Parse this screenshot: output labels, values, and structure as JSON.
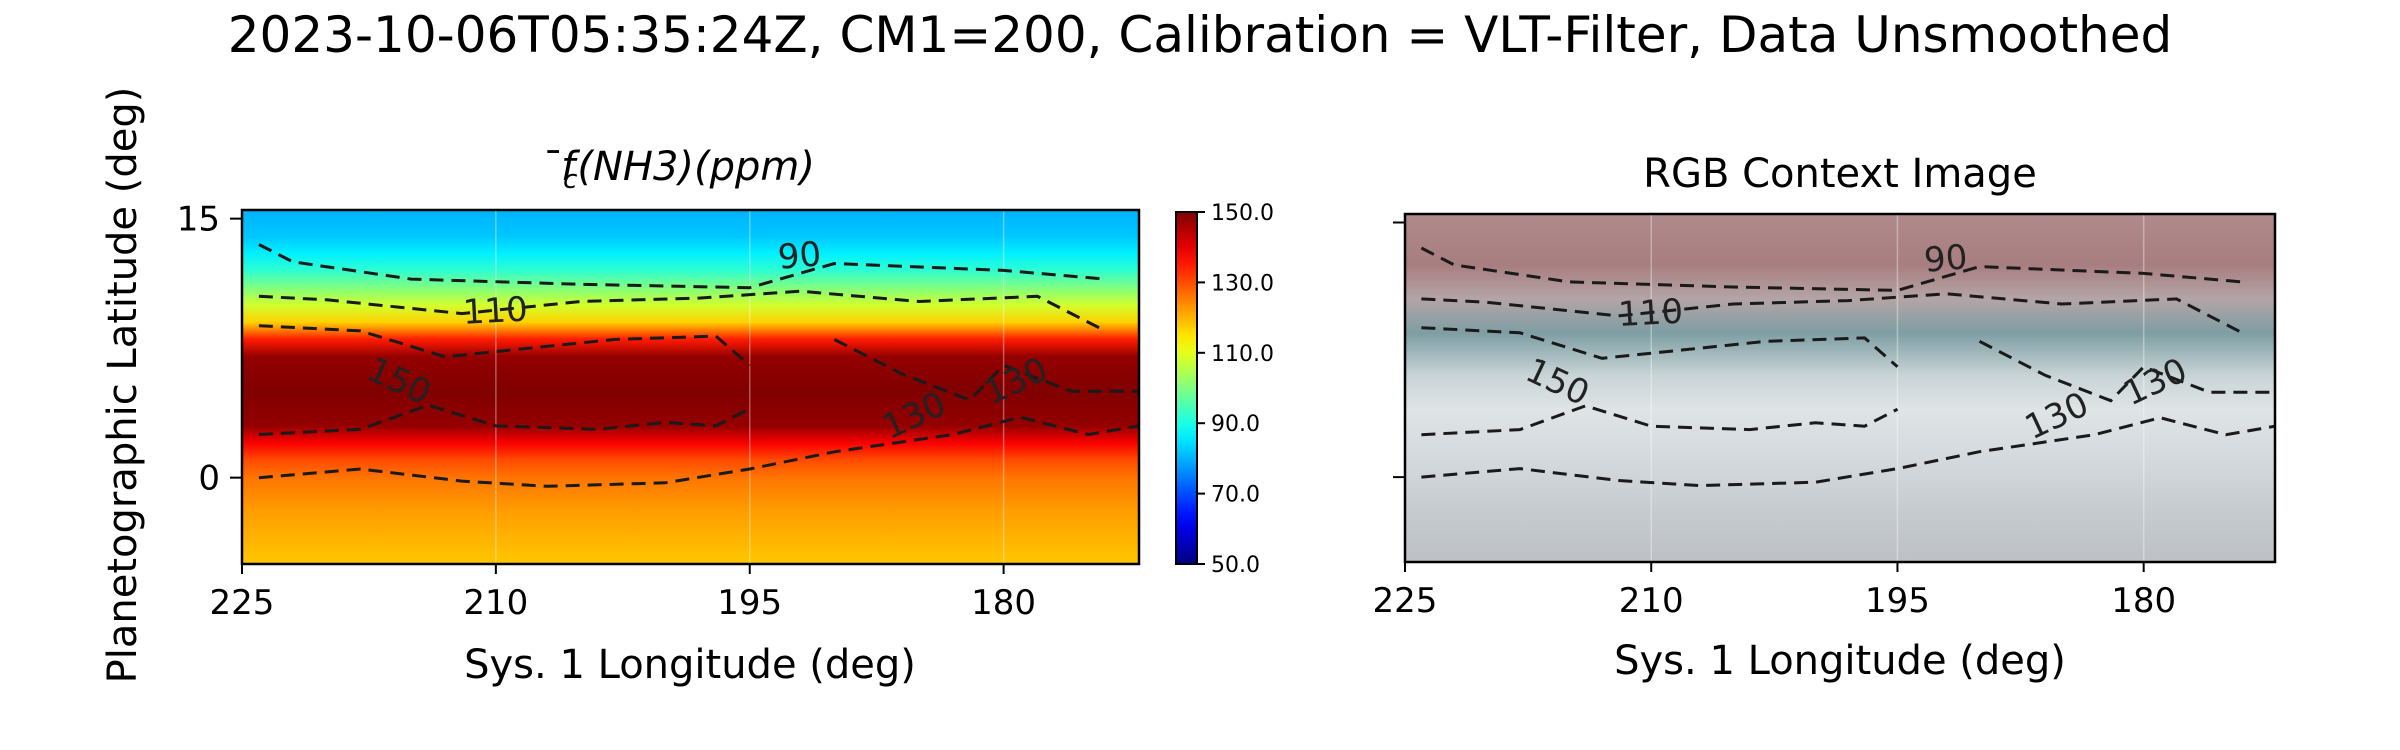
{
  "figure": {
    "suptitle": "2023-10-06T05:35:24Z, CM1=200, Calibration = VLT-Filter, Data Unsmoothed",
    "ylabel": "Planetographic Latitude (deg)"
  },
  "chart_data": [
    {
      "type": "heatmap",
      "title": "f̄c(NH3)(ppm)",
      "title_parts": {
        "base": "f",
        "macron": "̄",
        "sub": "c",
        "rest": "(NH3)(ppm)"
      },
      "xlabel": "Sys. 1 Longitude (deg)",
      "ylabel": "Planetographic Latitude (deg)",
      "xlim": [
        225,
        172
      ],
      "ylim": [
        -5,
        15.5
      ],
      "xticks": [
        225,
        210,
        195,
        180
      ],
      "xtick_labels": [
        "225",
        "210",
        "195",
        "180"
      ],
      "yticks": [
        15,
        0
      ],
      "ytick_labels": [
        "15",
        "0"
      ],
      "grid": "vertical lines at longitude ticks",
      "colormap": "jet",
      "colorbar": {
        "vmin": 50.0,
        "vmax": 150.0,
        "ticks": [
          150.0,
          130.0,
          110.0,
          90.0,
          70.0,
          50.0
        ],
        "tick_labels": [
          "150.0",
          "130.0",
          "110.0",
          "90.0",
          "70.0",
          "50.0"
        ]
      },
      "latitude_profile": [
        {
          "lat": 15.5,
          "value": 80
        },
        {
          "lat": 14.0,
          "value": 82
        },
        {
          "lat": 13.0,
          "value": 86
        },
        {
          "lat": 12.0,
          "value": 92
        },
        {
          "lat": 11.0,
          "value": 100
        },
        {
          "lat": 10.0,
          "value": 108
        },
        {
          "lat": 9.0,
          "value": 117
        },
        {
          "lat": 8.0,
          "value": 135
        },
        {
          "lat": 7.0,
          "value": 148
        },
        {
          "lat": 5.0,
          "value": 152
        },
        {
          "lat": 3.0,
          "value": 148
        },
        {
          "lat": 2.0,
          "value": 138
        },
        {
          "lat": 1.0,
          "value": 130
        },
        {
          "lat": 0.0,
          "value": 126
        },
        {
          "lat": -2.0,
          "value": 122
        },
        {
          "lat": -5.0,
          "value": 118
        }
      ],
      "contours": [
        {
          "level": "90",
          "points": [
            [
              224,
              13.5
            ],
            [
              222,
              12.5
            ],
            [
              215,
              11.5
            ],
            [
              205,
              11.2
            ],
            [
              195,
              11.0
            ],
            [
              190,
              12.4
            ],
            [
              180,
              12.0
            ],
            [
              174,
              11.5
            ]
          ]
        },
        {
          "level": "110",
          "points": [
            [
              224,
              10.5
            ],
            [
              220,
              10.3
            ],
            [
              212,
              9.5
            ],
            [
              205,
              10.2
            ],
            [
              198,
              10.4
            ],
            [
              192,
              10.8
            ],
            [
              185,
              10.2
            ],
            [
              178,
              10.5
            ],
            [
              174,
              8.5
            ]
          ]
        },
        {
          "level": "150",
          "points": [
            [
              224,
              2.5
            ],
            [
              218,
              2.8
            ],
            [
              214,
              4.2
            ],
            [
              210,
              3.0
            ],
            [
              204,
              2.8
            ],
            [
              200,
              3.2
            ],
            [
              197,
              3.0
            ],
            [
              195,
              4.0
            ]
          ]
        },
        {
          "level": "150",
          "points": [
            [
              224,
              8.8
            ],
            [
              218,
              8.5
            ],
            [
              213,
              7.0
            ],
            [
              208,
              7.5
            ],
            [
              203,
              8.0
            ],
            [
              197,
              8.2
            ],
            [
              195,
              6.5
            ]
          ]
        },
        {
          "level": "130",
          "points": [
            [
              224,
              0.0
            ],
            [
              218,
              0.5
            ],
            [
              212,
              -0.2
            ],
            [
              207,
              -0.5
            ],
            [
              200,
              -0.3
            ],
            [
              195,
              0.5
            ],
            [
              190,
              1.5
            ],
            [
              183,
              2.5
            ],
            [
              179,
              3.5
            ],
            [
              175,
              2.5
            ],
            [
              172,
              3.0
            ]
          ]
        },
        {
          "level": "130",
          "points": [
            [
              190,
              8.0
            ],
            [
              186,
              6.0
            ],
            [
              182,
              4.5
            ],
            [
              180,
              6.5
            ],
            [
              176,
              5.0
            ],
            [
              172,
              5.0
            ]
          ]
        }
      ],
      "contour_labels": [
        {
          "text": "90",
          "lon": 192,
          "lat": 12.2,
          "angle": -5
        },
        {
          "text": "110",
          "lon": 210,
          "lat": 9.0,
          "angle": -3
        },
        {
          "text": "150",
          "lon": 216,
          "lat": 5.0,
          "angle": 25
        },
        {
          "text": "130",
          "lon": 185,
          "lat": 3.0,
          "angle": -25
        },
        {
          "text": "130",
          "lon": 179,
          "lat": 5.0,
          "angle": -25
        }
      ]
    },
    {
      "type": "image",
      "title": "RGB Context Image",
      "xlabel": "Sys. 1 Longitude (deg)",
      "xlim": [
        225,
        172
      ],
      "ylim": [
        -5,
        15.5
      ],
      "xticks": [
        225,
        210,
        195,
        180
      ],
      "xtick_labels": [
        "225",
        "210",
        "195",
        "180"
      ],
      "yticks": [
        15,
        0
      ],
      "ytick_labels": [
        "",
        ""
      ],
      "grid": "vertical lines at longitude ticks",
      "color_bands": [
        {
          "lat": 15.5,
          "color": "#b08a8c"
        },
        {
          "lat": 12.5,
          "color": "#a87e80"
        },
        {
          "lat": 10.5,
          "color": "#b4a4a6"
        },
        {
          "lat": 8.5,
          "color": "#7e9ea4"
        },
        {
          "lat": 6.0,
          "color": "#c8d4d6"
        },
        {
          "lat": 4.0,
          "color": "#dfe4e5"
        },
        {
          "lat": 1.0,
          "color": "#d3d9dd"
        },
        {
          "lat": -2.0,
          "color": "#c6cbcf"
        },
        {
          "lat": -5.0,
          "color": "#bdc1c5"
        }
      ],
      "contours_from_panel": 0
    }
  ]
}
